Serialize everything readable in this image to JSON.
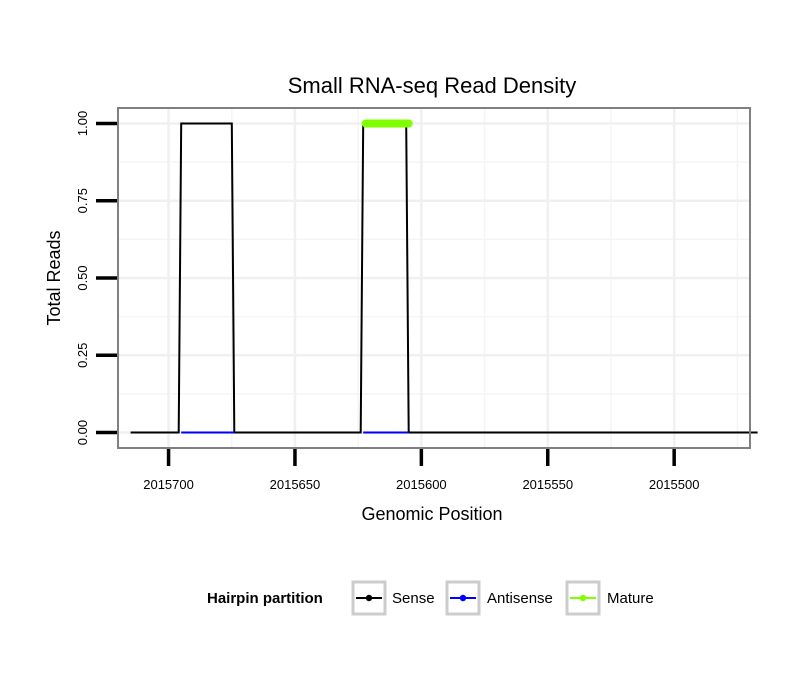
{
  "chart_data": {
    "type": "line",
    "title": "Small RNA-seq Read Density",
    "xlabel": "Genomic Position",
    "ylabel": "Total Reads",
    "x_reversed": true,
    "xlim": [
      2015720,
      2015470
    ],
    "ylim": [
      -0.05,
      1.05
    ],
    "x_ticks": [
      2015700,
      2015650,
      2015600,
      2015550,
      2015500
    ],
    "x_tick_labels": [
      "2015700",
      "2015650",
      "2015600",
      "2015550",
      "2015500"
    ],
    "y_ticks": [
      0,
      0.25,
      0.5,
      0.75,
      1.0
    ],
    "y_tick_labels": [
      "0.00",
      "0.25",
      "0.50",
      "0.75",
      "1.00"
    ],
    "grid": true,
    "series": [
      {
        "name": "Sense",
        "color": "#000000",
        "x": [
          2015715,
          2015696,
          2015695,
          2015675,
          2015674,
          2015624,
          2015623,
          2015606,
          2015605,
          2015467
        ],
        "y": [
          0,
          0,
          1,
          1,
          0,
          0,
          1,
          1,
          0,
          0
        ]
      },
      {
        "name": "Antisense",
        "color": "#0000ff",
        "x": [
          2015695,
          2015674
        ],
        "y": [
          0,
          0
        ]
      },
      {
        "name": "Antisense",
        "color": "#0000ff",
        "x": [
          2015623,
          2015605
        ],
        "y": [
          0,
          0
        ]
      },
      {
        "name": "Mature",
        "color": "#7fff00",
        "x": [
          2015622,
          2015605
        ],
        "y": [
          1,
          1
        ]
      }
    ],
    "legend": {
      "title": "Hairpin partition",
      "position": "bottom",
      "entries": [
        {
          "label": "Sense",
          "color": "#000000"
        },
        {
          "label": "Antisense",
          "color": "#0000ff"
        },
        {
          "label": "Mature",
          "color": "#7fff00"
        }
      ]
    }
  }
}
